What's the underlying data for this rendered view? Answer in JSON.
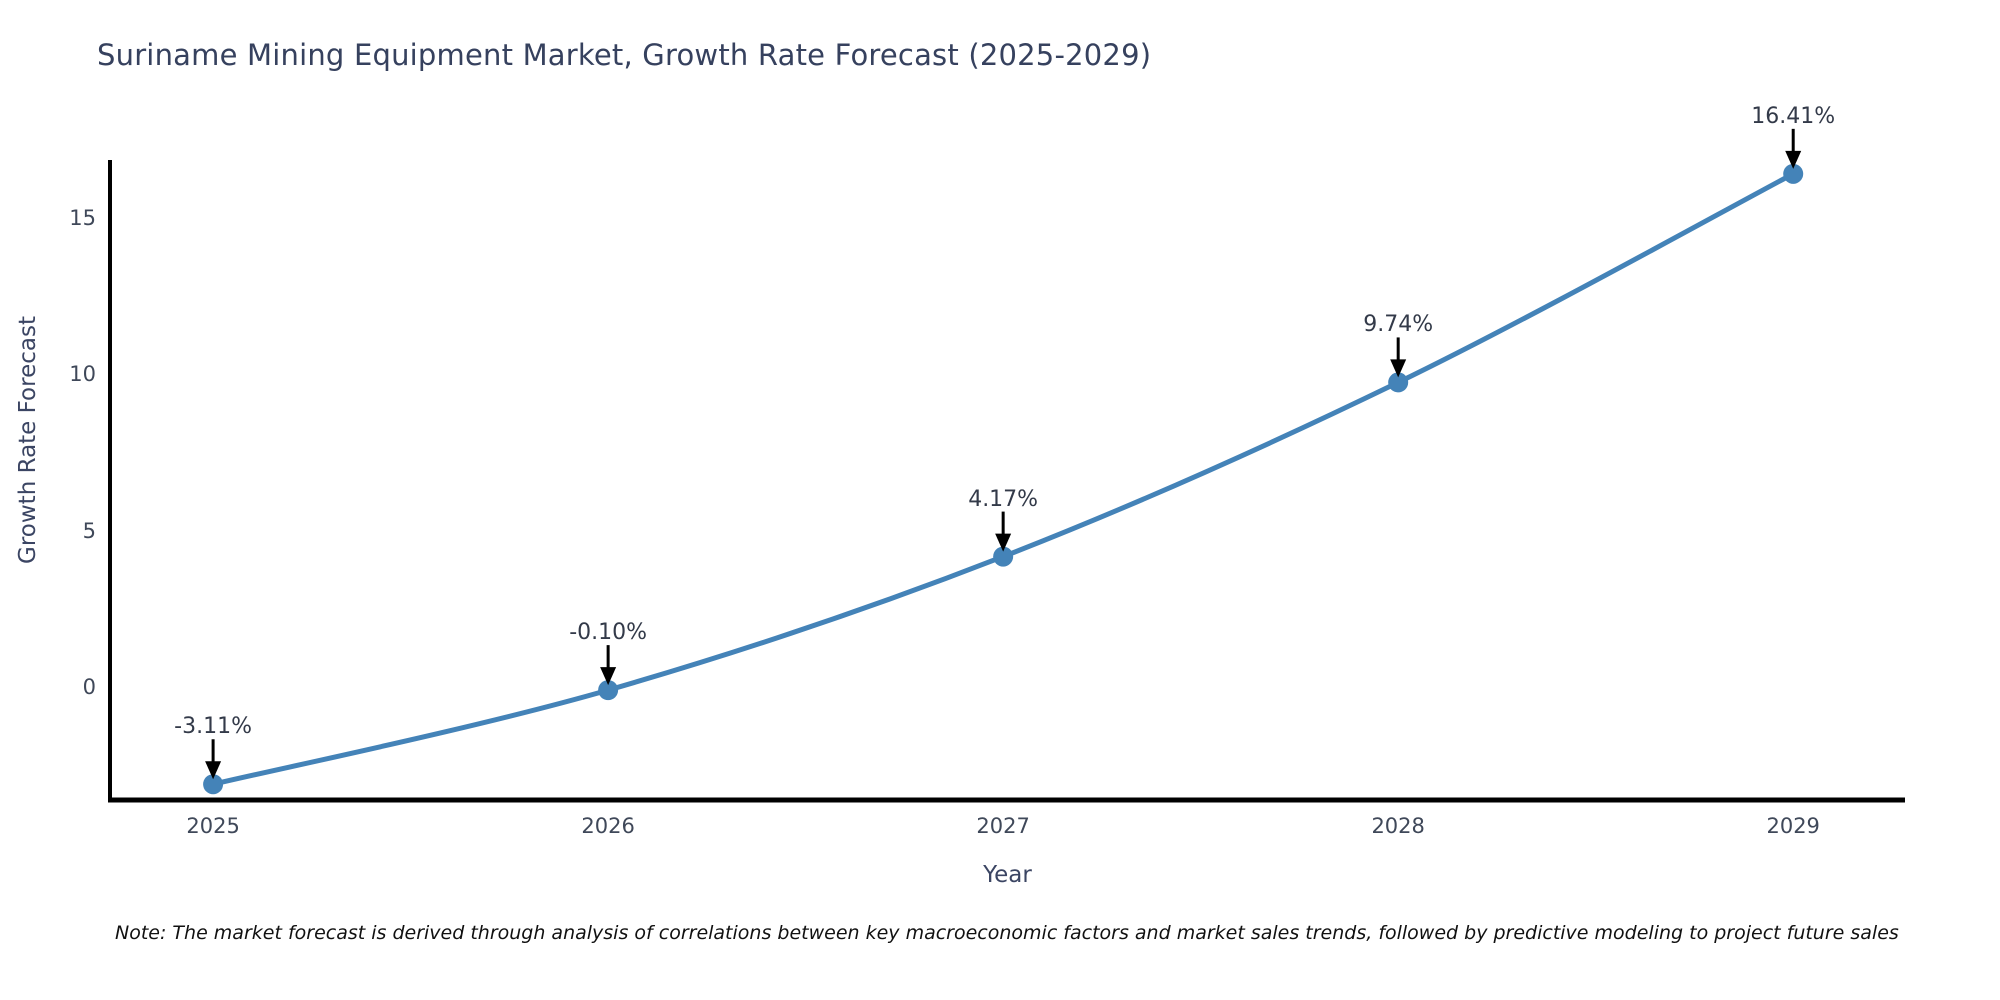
{
  "title": "Suriname Mining Equipment Market, Growth Rate Forecast (2025-2029)",
  "footnote": "Note: The market forecast is derived through analysis of correlations between key macroeconomic factors and market sales trends, followed by predictive modeling to project future sales",
  "chart_data": {
    "type": "line",
    "title": "Suriname Mining Equipment Market, Growth Rate Forecast (2025-2029)",
    "xlabel": "Year",
    "ylabel": "Growth Rate Forecast",
    "x": [
      2025,
      2026,
      2027,
      2028,
      2029
    ],
    "y": [
      -3.11,
      -0.1,
      4.17,
      9.74,
      16.41
    ],
    "point_labels": [
      "-3.11%",
      "-0.10%",
      "4.17%",
      "9.74%",
      "16.41%"
    ],
    "xtick_labels": [
      "2025",
      "2026",
      "2027",
      "2028",
      "2029"
    ],
    "ytick_values": [
      0,
      5,
      10,
      15
    ],
    "ytick_labels": [
      "0",
      "5",
      "10",
      "15"
    ],
    "xlim": [
      2024.739,
      2029.283
    ],
    "ylim": [
      -3.614,
      16.853
    ],
    "grid": false,
    "legend": null,
    "line_color": "#4483b8",
    "marker_color": "#4483b8",
    "arrow_color": "#000000",
    "axis_line_color": "#000000"
  }
}
